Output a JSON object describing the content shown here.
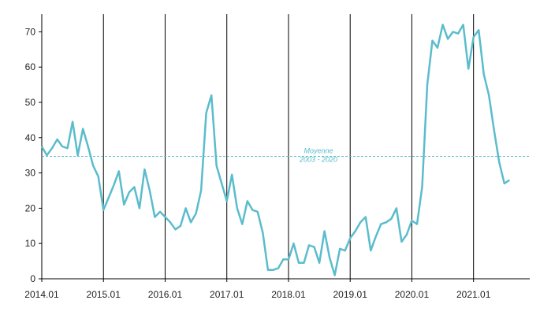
{
  "chart_data": {
    "type": "line",
    "categories": [
      "2014.01",
      null,
      null,
      null,
      null,
      null,
      null,
      null,
      null,
      null,
      null,
      null,
      "2015.01",
      null,
      null,
      null,
      null,
      null,
      null,
      null,
      null,
      null,
      null,
      null,
      "2016.01",
      null,
      null,
      null,
      null,
      null,
      null,
      null,
      null,
      null,
      null,
      null,
      "2017.01",
      null,
      null,
      null,
      null,
      null,
      null,
      null,
      null,
      null,
      null,
      null,
      "2018.01",
      null,
      null,
      null,
      null,
      null,
      null,
      null,
      null,
      null,
      null,
      null,
      "2019.01",
      null,
      null,
      null,
      null,
      null,
      null,
      null,
      null,
      null,
      null,
      null,
      "2020.01",
      null,
      null,
      null,
      null,
      null,
      null,
      null,
      null,
      null,
      null,
      null,
      "2021.01",
      null,
      null,
      null,
      null,
      null,
      null,
      null
    ],
    "series": [
      {
        "color": "#5bbccc",
        "values": [
          37.5,
          35,
          37,
          39.5,
          37.5,
          37,
          44.5,
          35,
          42.5,
          37.5,
          32,
          29,
          19.5,
          23,
          26.5,
          30.5,
          21,
          24.5,
          26,
          20,
          31,
          25,
          17.5,
          19,
          17.5,
          16,
          14,
          15,
          20,
          16,
          18.5,
          25,
          47,
          52,
          32,
          27,
          22,
          29.5,
          20,
          15.5,
          22,
          19.5,
          19,
          13,
          2.5,
          2.5,
          3,
          5.5,
          5.5,
          10,
          4.5,
          4.5,
          9.5,
          9,
          4.5,
          13.5,
          6,
          1,
          8.5,
          8,
          11.5,
          13.5,
          16,
          17.5,
          8,
          12,
          15.5,
          16,
          17,
          20,
          10.5,
          12.5,
          16.5,
          15.5,
          26,
          55,
          67.5,
          65.5,
          72,
          68,
          70,
          69.5,
          72,
          59.5,
          68.5,
          70.5,
          58,
          52,
          42,
          33,
          27,
          28
        ]
      }
    ],
    "reference": {
      "value": 34.7,
      "label": [
        "Moyenne",
        "2003 - 2020"
      ]
    },
    "ylim": [
      0,
      75
    ],
    "yticks": [
      0,
      10,
      20,
      30,
      40,
      50,
      60,
      70
    ]
  }
}
